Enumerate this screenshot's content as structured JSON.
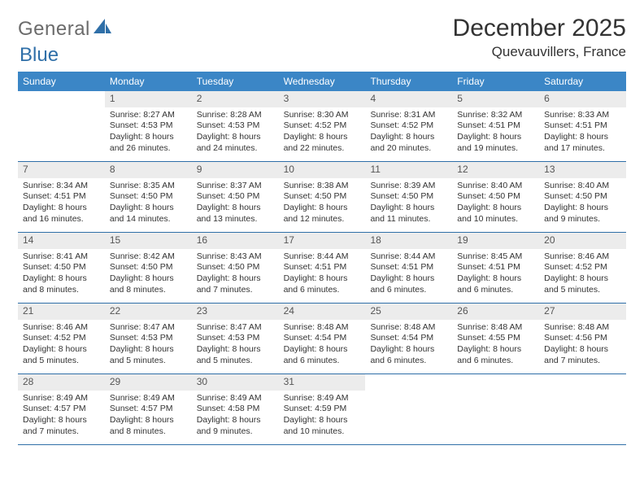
{
  "logo": {
    "text_a": "General",
    "text_b": "Blue"
  },
  "header": {
    "month_title": "December 2025",
    "location": "Quevauvillers, France"
  },
  "colors": {
    "header_bg": "#3b86c6",
    "header_text": "#ffffff",
    "daynum_bg": "#ececec",
    "rule": "#2f6fa8",
    "body_text": "#333333",
    "logo_blue": "#2f6fa8",
    "logo_gray": "#6b6b6b"
  },
  "weekdays": [
    "Sunday",
    "Monday",
    "Tuesday",
    "Wednesday",
    "Thursday",
    "Friday",
    "Saturday"
  ],
  "weeks": [
    [
      null,
      {
        "n": "1",
        "sr": "Sunrise: 8:27 AM",
        "ss": "Sunset: 4:53 PM",
        "dl": "Daylight: 8 hours and 26 minutes."
      },
      {
        "n": "2",
        "sr": "Sunrise: 8:28 AM",
        "ss": "Sunset: 4:53 PM",
        "dl": "Daylight: 8 hours and 24 minutes."
      },
      {
        "n": "3",
        "sr": "Sunrise: 8:30 AM",
        "ss": "Sunset: 4:52 PM",
        "dl": "Daylight: 8 hours and 22 minutes."
      },
      {
        "n": "4",
        "sr": "Sunrise: 8:31 AM",
        "ss": "Sunset: 4:52 PM",
        "dl": "Daylight: 8 hours and 20 minutes."
      },
      {
        "n": "5",
        "sr": "Sunrise: 8:32 AM",
        "ss": "Sunset: 4:51 PM",
        "dl": "Daylight: 8 hours and 19 minutes."
      },
      {
        "n": "6",
        "sr": "Sunrise: 8:33 AM",
        "ss": "Sunset: 4:51 PM",
        "dl": "Daylight: 8 hours and 17 minutes."
      }
    ],
    [
      {
        "n": "7",
        "sr": "Sunrise: 8:34 AM",
        "ss": "Sunset: 4:51 PM",
        "dl": "Daylight: 8 hours and 16 minutes."
      },
      {
        "n": "8",
        "sr": "Sunrise: 8:35 AM",
        "ss": "Sunset: 4:50 PM",
        "dl": "Daylight: 8 hours and 14 minutes."
      },
      {
        "n": "9",
        "sr": "Sunrise: 8:37 AM",
        "ss": "Sunset: 4:50 PM",
        "dl": "Daylight: 8 hours and 13 minutes."
      },
      {
        "n": "10",
        "sr": "Sunrise: 8:38 AM",
        "ss": "Sunset: 4:50 PM",
        "dl": "Daylight: 8 hours and 12 minutes."
      },
      {
        "n": "11",
        "sr": "Sunrise: 8:39 AM",
        "ss": "Sunset: 4:50 PM",
        "dl": "Daylight: 8 hours and 11 minutes."
      },
      {
        "n": "12",
        "sr": "Sunrise: 8:40 AM",
        "ss": "Sunset: 4:50 PM",
        "dl": "Daylight: 8 hours and 10 minutes."
      },
      {
        "n": "13",
        "sr": "Sunrise: 8:40 AM",
        "ss": "Sunset: 4:50 PM",
        "dl": "Daylight: 8 hours and 9 minutes."
      }
    ],
    [
      {
        "n": "14",
        "sr": "Sunrise: 8:41 AM",
        "ss": "Sunset: 4:50 PM",
        "dl": "Daylight: 8 hours and 8 minutes."
      },
      {
        "n": "15",
        "sr": "Sunrise: 8:42 AM",
        "ss": "Sunset: 4:50 PM",
        "dl": "Daylight: 8 hours and 8 minutes."
      },
      {
        "n": "16",
        "sr": "Sunrise: 8:43 AM",
        "ss": "Sunset: 4:50 PM",
        "dl": "Daylight: 8 hours and 7 minutes."
      },
      {
        "n": "17",
        "sr": "Sunrise: 8:44 AM",
        "ss": "Sunset: 4:51 PM",
        "dl": "Daylight: 8 hours and 6 minutes."
      },
      {
        "n": "18",
        "sr": "Sunrise: 8:44 AM",
        "ss": "Sunset: 4:51 PM",
        "dl": "Daylight: 8 hours and 6 minutes."
      },
      {
        "n": "19",
        "sr": "Sunrise: 8:45 AM",
        "ss": "Sunset: 4:51 PM",
        "dl": "Daylight: 8 hours and 6 minutes."
      },
      {
        "n": "20",
        "sr": "Sunrise: 8:46 AM",
        "ss": "Sunset: 4:52 PM",
        "dl": "Daylight: 8 hours and 5 minutes."
      }
    ],
    [
      {
        "n": "21",
        "sr": "Sunrise: 8:46 AM",
        "ss": "Sunset: 4:52 PM",
        "dl": "Daylight: 8 hours and 5 minutes."
      },
      {
        "n": "22",
        "sr": "Sunrise: 8:47 AM",
        "ss": "Sunset: 4:53 PM",
        "dl": "Daylight: 8 hours and 5 minutes."
      },
      {
        "n": "23",
        "sr": "Sunrise: 8:47 AM",
        "ss": "Sunset: 4:53 PM",
        "dl": "Daylight: 8 hours and 5 minutes."
      },
      {
        "n": "24",
        "sr": "Sunrise: 8:48 AM",
        "ss": "Sunset: 4:54 PM",
        "dl": "Daylight: 8 hours and 6 minutes."
      },
      {
        "n": "25",
        "sr": "Sunrise: 8:48 AM",
        "ss": "Sunset: 4:54 PM",
        "dl": "Daylight: 8 hours and 6 minutes."
      },
      {
        "n": "26",
        "sr": "Sunrise: 8:48 AM",
        "ss": "Sunset: 4:55 PM",
        "dl": "Daylight: 8 hours and 6 minutes."
      },
      {
        "n": "27",
        "sr": "Sunrise: 8:48 AM",
        "ss": "Sunset: 4:56 PM",
        "dl": "Daylight: 8 hours and 7 minutes."
      }
    ],
    [
      {
        "n": "28",
        "sr": "Sunrise: 8:49 AM",
        "ss": "Sunset: 4:57 PM",
        "dl": "Daylight: 8 hours and 7 minutes."
      },
      {
        "n": "29",
        "sr": "Sunrise: 8:49 AM",
        "ss": "Sunset: 4:57 PM",
        "dl": "Daylight: 8 hours and 8 minutes."
      },
      {
        "n": "30",
        "sr": "Sunrise: 8:49 AM",
        "ss": "Sunset: 4:58 PM",
        "dl": "Daylight: 8 hours and 9 minutes."
      },
      {
        "n": "31",
        "sr": "Sunrise: 8:49 AM",
        "ss": "Sunset: 4:59 PM",
        "dl": "Daylight: 8 hours and 10 minutes."
      },
      null,
      null,
      null
    ]
  ]
}
